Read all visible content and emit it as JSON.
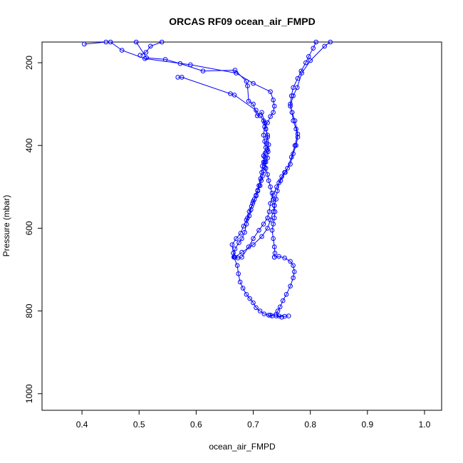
{
  "chart_data": {
    "type": "line",
    "title": "ORCAS RF09 ocean_air_FMPD",
    "xlabel": "ocean_air_FMPD",
    "ylabel": "Pressure (mbar)",
    "xlim": [
      0.33,
      1.03
    ],
    "ylim": [
      1040,
      150
    ],
    "x_reversed": false,
    "y_reversed": true,
    "xticks": [
      0.4,
      0.5,
      0.6,
      0.7,
      0.8,
      0.9,
      1.0
    ],
    "xtick_labels": [
      "0.4",
      "0.5",
      "0.6",
      "0.7",
      "0.8",
      "0.9",
      "1.0"
    ],
    "yticks": [
      200,
      400,
      600,
      800,
      1000
    ],
    "ytick_labels": [
      "200",
      "400",
      "600",
      "800",
      "1000"
    ],
    "grid": false,
    "legend": "none",
    "color": "#0000ff",
    "series": [
      {
        "values": [
          [
            0.404,
            155
          ],
          [
            0.442,
            150
          ]
        ]
      },
      {
        "values": [
          [
            0.502,
            182
          ],
          [
            0.512,
            175
          ],
          [
            0.52,
            160
          ],
          [
            0.54,
            150
          ]
        ]
      },
      {
        "values": [
          [
            0.495,
            150
          ],
          [
            0.513,
            188
          ],
          [
            0.546,
            192
          ],
          [
            0.572,
            202
          ],
          [
            0.612,
            220
          ],
          [
            0.668,
            218
          ],
          [
            0.688,
            245
          ],
          [
            0.69,
            256
          ],
          [
            0.692,
            293
          ],
          [
            0.7,
            300
          ],
          [
            0.707,
            328
          ],
          [
            0.715,
            320
          ],
          [
            0.72,
            345
          ],
          [
            0.722,
            360
          ],
          [
            0.725,
            375
          ],
          [
            0.723,
            395
          ],
          [
            0.725,
            410
          ],
          [
            0.721,
            418
          ],
          [
            0.72,
            428
          ],
          [
            0.718,
            440
          ],
          [
            0.716,
            450
          ],
          [
            0.715,
            465
          ],
          [
            0.713,
            480
          ],
          [
            0.71,
            497
          ],
          [
            0.708,
            510
          ],
          [
            0.705,
            522
          ],
          [
            0.7,
            535
          ],
          [
            0.697,
            547
          ],
          [
            0.693,
            560
          ],
          [
            0.69,
            575
          ],
          [
            0.688,
            590
          ],
          [
            0.685,
            610
          ],
          [
            0.68,
            625
          ],
          [
            0.675,
            635
          ],
          [
            0.668,
            650
          ],
          [
            0.666,
            670
          ],
          [
            0.672,
            690
          ],
          [
            0.674,
            710
          ],
          [
            0.677,
            730
          ],
          [
            0.682,
            745
          ],
          [
            0.688,
            760
          ],
          [
            0.694,
            770
          ],
          [
            0.7,
            780
          ],
          [
            0.705,
            792
          ],
          [
            0.712,
            800
          ],
          [
            0.719,
            807
          ],
          [
            0.727,
            810
          ],
          [
            0.733,
            812
          ]
        ]
      },
      {
        "values": [
          [
            0.568,
            235
          ],
          [
            0.575,
            235
          ],
          [
            0.66,
            275
          ],
          [
            0.667,
            278
          ],
          [
            0.705,
            315
          ],
          [
            0.712,
            328
          ],
          [
            0.718,
            340
          ],
          [
            0.722,
            360
          ],
          [
            0.725,
            380
          ],
          [
            0.727,
            398
          ],
          [
            0.726,
            415
          ],
          [
            0.725,
            430
          ],
          [
            0.722,
            440
          ],
          [
            0.72,
            452
          ],
          [
            0.718,
            462
          ],
          [
            0.716,
            474
          ],
          [
            0.714,
            485
          ],
          [
            0.712,
            497
          ],
          [
            0.708,
            508
          ],
          [
            0.705,
            520
          ],
          [
            0.702,
            530
          ],
          [
            0.699,
            540
          ],
          [
            0.696,
            555
          ],
          [
            0.693,
            570
          ],
          [
            0.688,
            580
          ],
          [
            0.683,
            595
          ],
          [
            0.678,
            612
          ],
          [
            0.67,
            625
          ],
          [
            0.663,
            640
          ],
          [
            0.665,
            660
          ],
          [
            0.667,
            670
          ],
          [
            0.673,
            672
          ],
          [
            0.68,
            670
          ],
          [
            0.692,
            645
          ],
          [
            0.7,
            625
          ],
          [
            0.71,
            605
          ],
          [
            0.718,
            590
          ],
          [
            0.725,
            575
          ],
          [
            0.728,
            560
          ],
          [
            0.73,
            540
          ],
          [
            0.735,
            520
          ],
          [
            0.741,
            500
          ],
          [
            0.748,
            485
          ],
          [
            0.756,
            465
          ],
          [
            0.76,
            455
          ],
          [
            0.767,
            428
          ],
          [
            0.773,
            400
          ],
          [
            0.778,
            372
          ],
          [
            0.773,
            340
          ],
          [
            0.768,
            320
          ],
          [
            0.765,
            305
          ],
          [
            0.77,
            280
          ],
          [
            0.777,
            260
          ],
          [
            0.785,
            225
          ],
          [
            0.8,
            195
          ],
          [
            0.825,
            160
          ],
          [
            0.835,
            150
          ]
        ]
      },
      {
        "values": [
          [
            0.668,
            670
          ],
          [
            0.68,
            658
          ],
          [
            0.7,
            640
          ],
          [
            0.715,
            620
          ],
          [
            0.725,
            600
          ],
          [
            0.73,
            580
          ],
          [
            0.735,
            560
          ],
          [
            0.737,
            545
          ],
          [
            0.74,
            530
          ],
          [
            0.742,
            510
          ],
          [
            0.745,
            490
          ],
          [
            0.75,
            475
          ],
          [
            0.755,
            465
          ],
          [
            0.765,
            445
          ],
          [
            0.77,
            420
          ],
          [
            0.775,
            400
          ],
          [
            0.778,
            380
          ],
          [
            0.775,
            360
          ],
          [
            0.77,
            340
          ],
          [
            0.768,
            320
          ],
          [
            0.765,
            300
          ],
          [
            0.767,
            280
          ],
          [
            0.77,
            260
          ],
          [
            0.778,
            238
          ],
          [
            0.784,
            220
          ],
          [
            0.792,
            200
          ],
          [
            0.797,
            185
          ],
          [
            0.805,
            165
          ],
          [
            0.81,
            150
          ]
        ]
      },
      {
        "values": [
          [
            0.737,
            670
          ],
          [
            0.745,
            668
          ],
          [
            0.755,
            672
          ],
          [
            0.765,
            680
          ],
          [
            0.77,
            690
          ],
          [
            0.772,
            705
          ],
          [
            0.77,
            720
          ],
          [
            0.765,
            740
          ],
          [
            0.758,
            760
          ],
          [
            0.752,
            775
          ],
          [
            0.747,
            790
          ],
          [
            0.743,
            800
          ],
          [
            0.74,
            808
          ],
          [
            0.745,
            812
          ],
          [
            0.755,
            813
          ],
          [
            0.762,
            812
          ]
        ]
      },
      {
        "values": [
          [
            0.737,
            670
          ],
          [
            0.738,
            660
          ],
          [
            0.737,
            645
          ],
          [
            0.735,
            625
          ],
          [
            0.733,
            605
          ],
          [
            0.735,
            590
          ],
          [
            0.737,
            575
          ],
          [
            0.738,
            560
          ],
          [
            0.737,
            545
          ],
          [
            0.735,
            530
          ],
          [
            0.733,
            515
          ],
          [
            0.73,
            500
          ],
          [
            0.727,
            485
          ],
          [
            0.725,
            470
          ],
          [
            0.722,
            455
          ],
          [
            0.72,
            440
          ],
          [
            0.718,
            425
          ],
          [
            0.722,
            405
          ],
          [
            0.72,
            390
          ],
          [
            0.718,
            375
          ],
          [
            0.72,
            355
          ],
          [
            0.725,
            345
          ],
          [
            0.73,
            330
          ],
          [
            0.735,
            320
          ],
          [
            0.737,
            305
          ],
          [
            0.735,
            290
          ],
          [
            0.73,
            270
          ],
          [
            0.7,
            250
          ],
          [
            0.67,
            225
          ],
          [
            0.59,
            205
          ],
          [
            0.51,
            190
          ],
          [
            0.47,
            170
          ],
          [
            0.45,
            150
          ]
        ]
      },
      {
        "values": [
          [
            0.73,
            810
          ],
          [
            0.74,
            812
          ],
          [
            0.75,
            815
          ]
        ]
      }
    ]
  }
}
